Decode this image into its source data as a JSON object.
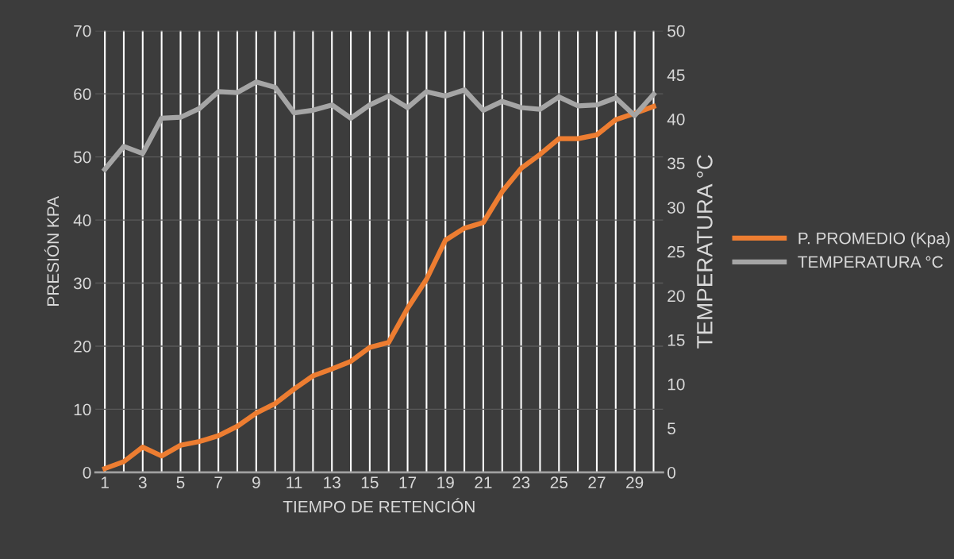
{
  "chart_data": {
    "type": "line",
    "xlabel": "TIEMPO DE RETENCIÓN",
    "ylabel": "PRESIÓN KPA",
    "y2label": "TEMPERATURA °C",
    "categories": [
      "1",
      null,
      "3",
      null,
      "5",
      null,
      "7",
      null,
      "9",
      null,
      "11",
      null,
      "13",
      null,
      "15",
      null,
      "17",
      null,
      "19",
      null,
      "21",
      null,
      "23",
      null,
      "25",
      null,
      "27",
      null,
      "29",
      null
    ],
    "series": [
      {
        "name": "P. PROMEDIO (Kpa)",
        "color": "#ed7d31",
        "values": [
          0.6,
          1.7,
          4.0,
          2.6,
          4.3,
          4.9,
          5.8,
          7.3,
          9.4,
          10.9,
          13.2,
          15.3,
          16.4,
          17.6,
          19.8,
          20.6,
          26.0,
          30.6,
          36.8,
          38.7,
          39.6,
          44.5,
          48.2,
          50.4,
          52.9,
          52.9,
          53.5,
          55.9,
          56.9,
          58.0
        ]
      },
      {
        "name": "TEMPERATURA °C",
        "color": "#a5a5a5",
        "axis": "y2",
        "values": [
          34.3,
          36.9,
          36.1,
          40.1,
          40.2,
          41.2,
          43.1,
          43.0,
          44.2,
          43.6,
          40.7,
          41.0,
          41.6,
          40.1,
          41.6,
          42.6,
          41.3,
          43.1,
          42.6,
          43.3,
          41.0,
          42.0,
          41.3,
          41.1,
          42.5,
          41.5,
          41.6,
          42.4,
          40.4,
          42.8
        ]
      }
    ],
    "ylim": [
      0,
      70
    ],
    "yticks": [
      0,
      10,
      20,
      30,
      40,
      50,
      60,
      70
    ],
    "y2lim": [
      0,
      50
    ],
    "y2ticks": [
      0,
      5,
      10,
      15,
      20,
      25,
      30,
      35,
      40,
      45,
      50
    ],
    "grid": true,
    "legend": "right",
    "marker": "none",
    "line_style": "solid"
  }
}
